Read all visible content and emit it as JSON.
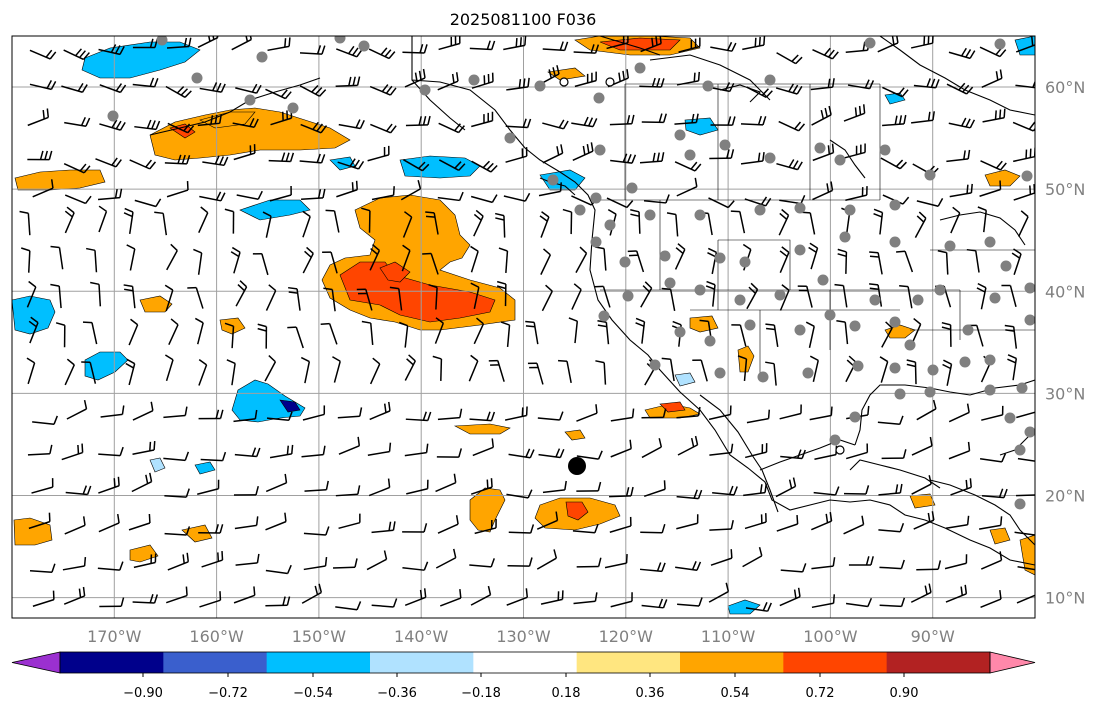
{
  "title": "2025081100 F036",
  "map": {
    "projection": "equirectangular",
    "lon_range": [
      -180,
      -80
    ],
    "lat_range": [
      8,
      65
    ],
    "lat_labels": [
      "60°N",
      "50°N",
      "40°N",
      "30°N",
      "20°N",
      "10°N"
    ],
    "lon_labels": [
      "170°W",
      "160°W",
      "150°W",
      "140°W",
      "130°W",
      "120°W",
      "110°W",
      "100°W",
      "90°W"
    ],
    "grid_color": "#a0a0a0",
    "label_color": "#808080",
    "marker": {
      "name": "storm-center-marker",
      "color": "#000000"
    }
  },
  "colorbar": {
    "tick_labels": [
      "−0.90",
      "−0.72",
      "−0.54",
      "−0.36",
      "−0.18",
      "0.18",
      "0.36",
      "0.54",
      "0.72",
      "0.90"
    ],
    "colors": [
      "#9b30d0",
      "#00008b",
      "#3a5fcd",
      "#00bfff",
      "#b0e2ff",
      "#ffffff",
      "#ffe680",
      "#ffa500",
      "#ff4500",
      "#b22222",
      "#ff88aa"
    ]
  }
}
